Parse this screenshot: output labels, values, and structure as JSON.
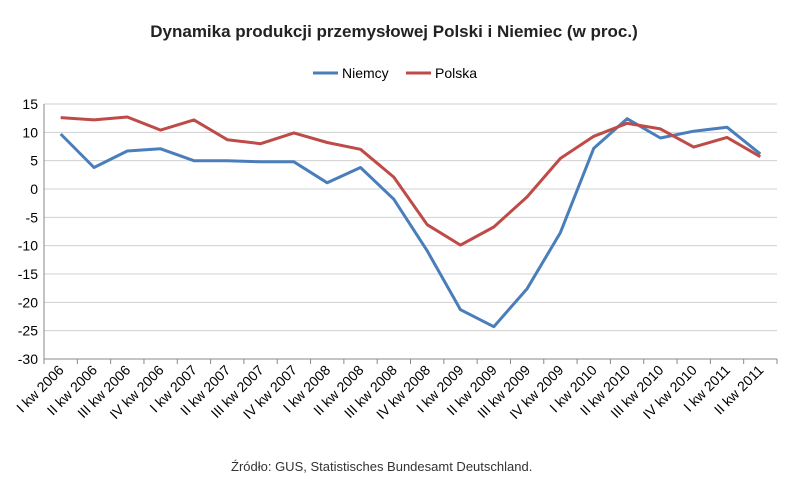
{
  "chart_data": {
    "type": "line",
    "title": "Dynamika produkcji przemysłowej Polski i Niemiec (w proc.)",
    "xlabel": "",
    "ylabel": "",
    "ylim": [
      -30,
      15
    ],
    "yticks": [
      15,
      10,
      5,
      0,
      -5,
      -10,
      -15,
      -20,
      -25,
      -30
    ],
    "grid": true,
    "legend_position": "top-center",
    "categories": [
      "I kw 2006",
      "II kw 2006",
      "III kw 2006",
      "IV kw 2006",
      "I kw 2007",
      "II kw 2007",
      "III kw 2007",
      "IV kw 2007",
      "I kw 2008",
      "II kw 2008",
      "III kw 2008",
      "IV kw 2008",
      "I kw 2009",
      "II kw 2009",
      "III kw 2009",
      "IV kw 2009",
      "I kw 2010",
      "II kw 2010",
      "III kw 2010",
      "IV kw 2010",
      "I kw 2011",
      "II kw 2011"
    ],
    "series": [
      {
        "name": "Niemcy",
        "color": "#4a7ebb",
        "values": [
          9.7,
          3.8,
          6.7,
          7.1,
          5.0,
          5.0,
          4.8,
          4.8,
          1.1,
          3.8,
          -1.8,
          -10.9,
          -21.3,
          -24.3,
          -17.6,
          -7.7,
          7.2,
          12.4,
          9.0,
          10.2,
          10.9,
          6.2
        ]
      },
      {
        "name": "Polska",
        "color": "#be4b48",
        "values": [
          12.6,
          12.2,
          12.7,
          10.4,
          12.2,
          8.7,
          8.0,
          9.9,
          8.2,
          7.0,
          2.1,
          -6.3,
          -9.9,
          -6.7,
          -1.4,
          5.4,
          9.3,
          11.6,
          10.6,
          7.4,
          9.1,
          5.7
        ]
      }
    ],
    "source_note": "Źródło: GUS, Statistisches Bundesamt Deutschland."
  }
}
